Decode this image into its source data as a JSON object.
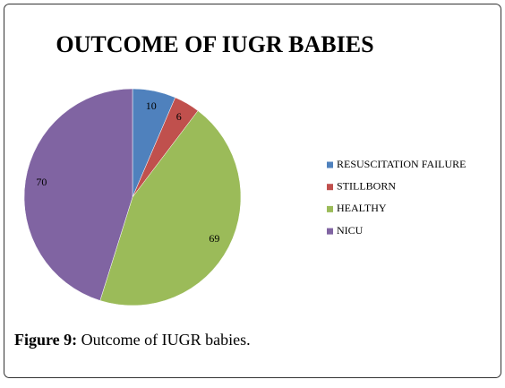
{
  "chart_data": {
    "type": "pie",
    "title": "OUTCOME OF IUGR BABIES",
    "categories": [
      "RESUSCITATION FAILURE",
      "STILLBORN",
      "HEALTHY",
      "NICU"
    ],
    "values": [
      10,
      6,
      69,
      70
    ],
    "colors": [
      "#4f81bd",
      "#c0504d",
      "#9bbb59",
      "#8064a2"
    ],
    "legend": "right"
  },
  "caption": {
    "label": "Figure 9:",
    "text": "Outcome of IUGR babies."
  }
}
